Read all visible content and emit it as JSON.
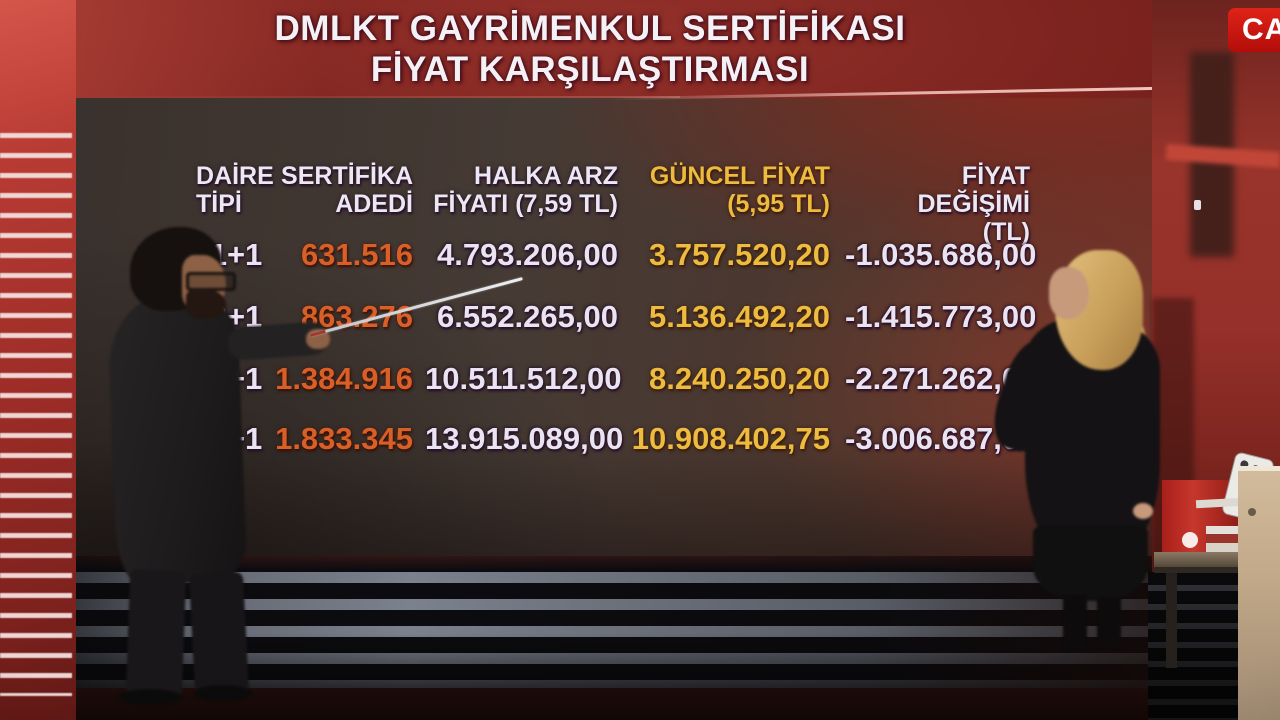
{
  "broadcast": {
    "live_badge": "CA",
    "title_line1": "DMLKT GAYRİMENKUL SERTİFİKASI",
    "title_line2": "FİYAT KARŞILAŞTIRMASI"
  },
  "table": {
    "headers": [
      {
        "line1": "DAİRE",
        "line2": "TİPİ"
      },
      {
        "line1": "SERTİFİKA",
        "line2": "ADEDİ"
      },
      {
        "line1": "HALKA ARZ",
        "line2": "FİYATI (7,59 TL)"
      },
      {
        "line1": "GÜNCEL FİYAT",
        "line2": "(5,95 TL)"
      },
      {
        "line1": "FİYAT DEĞİŞİMİ",
        "line2": "(TL)"
      }
    ],
    "rows": [
      {
        "tip": "1+1",
        "adet": "631.516",
        "halka_arz": "4.793.206,00",
        "guncel": "3.757.520,20",
        "degisim": "-1.035.686,00"
      },
      {
        "tip": "2+1",
        "adet": "863.276",
        "halka_arz": "6.552.265,00",
        "guncel": "5.136.492,20",
        "degisim": "-1.415.773,00"
      },
      {
        "tip": "3+1",
        "adet": "1.384.916",
        "halka_arz": "10.511.512,00",
        "guncel": "8.240.250,20",
        "degisim": "-2.271.262,00"
      },
      {
        "tip": "4+1",
        "adet": "1.833.345",
        "halka_arz": "13.915.089,00",
        "guncel": "10.908.402,75",
        "degisim": "-3.006.687,00"
      }
    ]
  },
  "colors": {
    "banner_red": "#8e2823",
    "live_badge_red": "#ce1410",
    "accent_orange": "#da5f26",
    "accent_gold": "#edbb3d",
    "table_text": "#eae4f2"
  },
  "chart_data": {
    "type": "table",
    "title": "DMLKT GAYRİMENKUL SERTİFİKASI FİYAT KARŞILAŞTIRMASI",
    "columns": [
      "DAİRE TİPİ",
      "SERTİFİKA ADEDİ",
      "HALKA ARZ FİYATI (7,59 TL)",
      "GÜNCEL FİYAT (5,95 TL)",
      "FİYAT DEĞİŞİMİ (TL)"
    ],
    "rows": [
      [
        "1+1",
        "631.516",
        "4.793.206,00",
        "3.757.520,20",
        "-1.035.686,00"
      ],
      [
        "2+1",
        "863.276",
        "6.552.265,00",
        "5.136.492,20",
        "-1.415.773,00"
      ],
      [
        "3+1",
        "1.384.916",
        "10.511.512,00",
        "8.240.250,20",
        "-2.271.262,00"
      ],
      [
        "4+1",
        "1.833.345",
        "13.915.089,00",
        "10.908.402,75",
        "-3.006.687,00"
      ]
    ],
    "halka_arz_unit_price_tl": 7.59,
    "guncel_unit_price_tl": 5.95
  }
}
